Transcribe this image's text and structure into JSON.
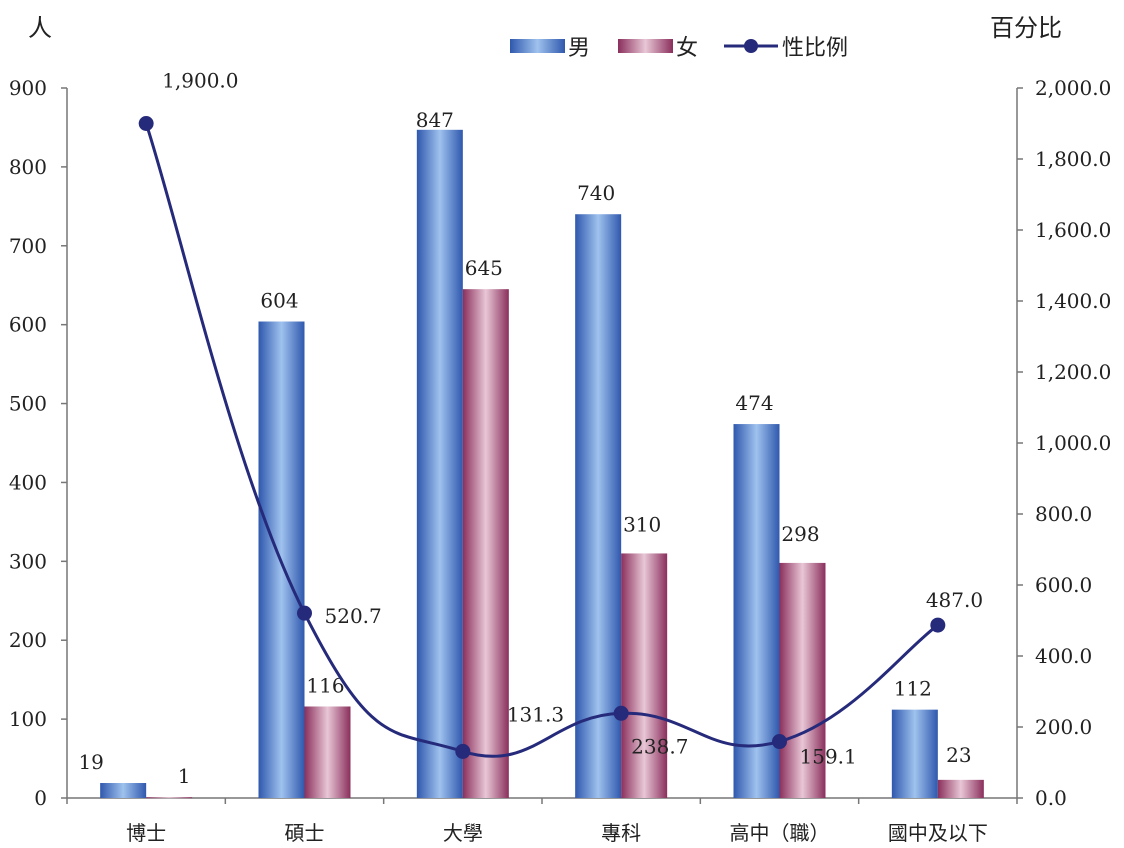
{
  "chart_data": {
    "type": "bar",
    "categories": [
      "博士",
      "碩士",
      "大學",
      "專科",
      "高中（職）",
      "國中及以下"
    ],
    "series": [
      {
        "name": "男",
        "type": "bar",
        "axis": "left",
        "values": [
          19,
          604,
          847,
          740,
          474,
          112
        ],
        "color": "#3c6fc4"
      },
      {
        "name": "女",
        "type": "bar",
        "axis": "left",
        "values": [
          1,
          116,
          645,
          310,
          298,
          23
        ],
        "color": "#a34a72"
      },
      {
        "name": "性比例",
        "type": "line",
        "axis": "right",
        "values": [
          1900.0,
          520.7,
          131.3,
          238.7,
          159.1,
          487.0
        ],
        "color": "#262a7a"
      }
    ],
    "left_axis": {
      "unit": "人",
      "ylim": [
        0,
        900
      ],
      "ticks": [
        "0",
        "100",
        "200",
        "300",
        "400",
        "500",
        "600",
        "700",
        "800",
        "900"
      ]
    },
    "right_axis": {
      "unit": "百分比",
      "ylim": [
        0,
        2000
      ],
      "ticks": [
        "0.0",
        "200.0",
        "400.0",
        "600.0",
        "800.0",
        "1,000.0",
        "1,200.0",
        "1,400.0",
        "1,600.0",
        "1,800.0",
        "2,000.0"
      ]
    },
    "bar_labels": {
      "男": [
        "19",
        "604",
        "847",
        "740",
        "474",
        "112"
      ],
      "女": [
        "1",
        "116",
        "645",
        "310",
        "298",
        "23"
      ]
    },
    "line_labels": [
      "1,900.0",
      "520.7",
      "131.3",
      "238.7",
      "159.1",
      "487.0"
    ],
    "legend": {
      "position": "top-center",
      "items": [
        "男",
        "女",
        "性比例"
      ]
    },
    "grid": false
  }
}
